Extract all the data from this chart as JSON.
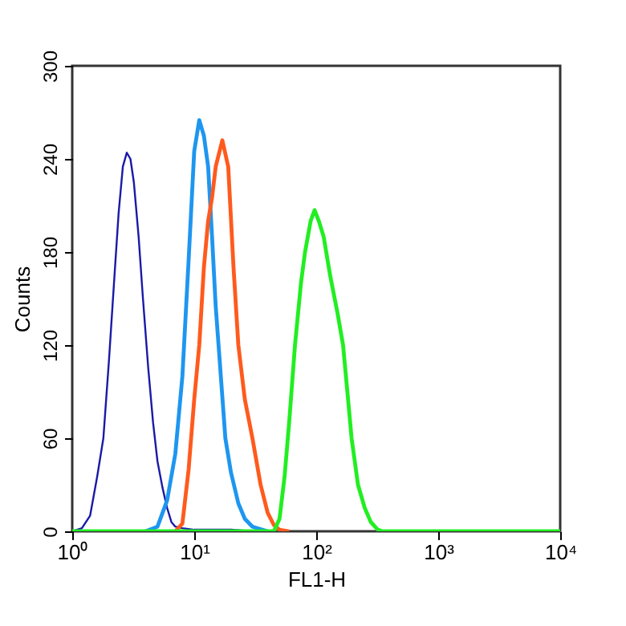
{
  "chart_data": {
    "type": "line",
    "xlabel": "FL1-H",
    "ylabel": "Counts",
    "log": "x",
    "grid": false,
    "xlim": [
      1,
      10000
    ],
    "ylim": [
      0,
      300
    ],
    "xticks": [
      {
        "value": 1,
        "label": "10⁰"
      },
      {
        "value": 10,
        "label": "10¹"
      },
      {
        "value": 100,
        "label": "10²"
      },
      {
        "value": 1000,
        "label": "10³"
      },
      {
        "value": 10000,
        "label": "10⁴"
      }
    ],
    "yticks": [
      0,
      60,
      120,
      180,
      240,
      300
    ],
    "series": [
      {
        "color": "#1a1aa8",
        "x": [
          1,
          1.2,
          1.4,
          1.6,
          1.8,
          2.0,
          2.2,
          2.4,
          2.6,
          2.8,
          3.0,
          3.2,
          3.5,
          3.8,
          4.2,
          4.6,
          5.0,
          5.5,
          6.0,
          6.5,
          7.0,
          8,
          10,
          20,
          30
        ],
        "values": [
          0,
          2,
          10,
          35,
          60,
          110,
          160,
          205,
          235,
          244,
          240,
          225,
          190,
          150,
          105,
          70,
          45,
          28,
          15,
          6,
          3,
          2,
          1,
          1,
          0
        ]
      },
      {
        "color": "#1e96f0",
        "x": [
          4,
          5,
          6,
          7,
          8,
          9,
          10,
          11,
          12,
          13,
          14,
          15,
          16,
          18,
          20,
          23,
          26,
          30,
          40
        ],
        "values": [
          0,
          3,
          20,
          50,
          100,
          175,
          245,
          265,
          255,
          235,
          190,
          145,
          115,
          60,
          38,
          18,
          8,
          3,
          0
        ]
      },
      {
        "color": "#ff5a1e",
        "x": [
          7,
          8,
          9,
          10,
          11,
          12,
          13,
          14,
          15,
          17,
          19,
          21,
          23,
          26,
          30,
          35,
          40,
          45,
          50,
          60
        ],
        "values": [
          0,
          5,
          40,
          85,
          120,
          170,
          200,
          215,
          235,
          252,
          235,
          170,
          120,
          85,
          60,
          30,
          12,
          4,
          1,
          0
        ]
      },
      {
        "color": "#22ee22",
        "x": [
          1,
          45,
          50,
          55,
          60,
          67,
          75,
          81,
          90,
          97,
          105,
          115,
          130,
          150,
          166,
          180,
          195,
          220,
          250,
          280,
          320,
          350,
          10000
        ],
        "values": [
          0,
          0,
          8,
          35,
          70,
          120,
          160,
          180,
          200,
          207,
          200,
          190,
          165,
          140,
          120,
          90,
          60,
          30,
          15,
          6,
          1,
          0,
          0
        ]
      }
    ]
  }
}
